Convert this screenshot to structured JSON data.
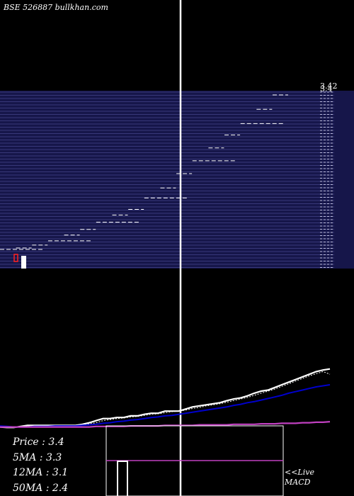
{
  "header": {
    "symbol": "BSE 526887",
    "site": "bullkhan.com"
  },
  "stats": [
    {
      "label": "Price",
      "value": "3.4"
    },
    {
      "label": "5MA",
      "value": "3.3"
    },
    {
      "label": "12MA",
      "value": "3.1"
    },
    {
      "label": "50MA",
      "value": "2.4"
    }
  ],
  "macd_label": {
    "line1": "<<Live",
    "line2": "MACD"
  },
  "colors": {
    "band": "#16164a",
    "band_line": "#5a5aa8",
    "price": "#ffffff",
    "ma_short": "#0000cc",
    "ma_long": "#c040c0",
    "volume_box": "#ffffff",
    "macd": "#c040c0"
  },
  "chart_data": {
    "type": "line",
    "price_axis_top_labels": [
      "3.42",
      "3.4"
    ],
    "price_steps": [
      2.32,
      2.33,
      2.35,
      2.38,
      2.42,
      2.46,
      2.51,
      2.56,
      2.6,
      2.68,
      2.75,
      2.85,
      2.94,
      3.03,
      3.12,
      3.2,
      3.3,
      3.4
    ],
    "series": [
      {
        "name": "Price",
        "values": [
          2.3,
          2.29,
          2.29,
          2.31,
          2.33,
          2.33,
          2.33,
          2.33,
          2.33,
          2.33,
          2.33,
          2.33,
          2.35,
          2.38,
          2.42,
          2.46,
          2.46,
          2.48,
          2.48,
          2.51,
          2.51,
          2.54,
          2.56,
          2.56,
          2.6,
          2.6,
          2.6,
          2.64,
          2.68,
          2.7,
          2.72,
          2.74,
          2.76,
          2.8,
          2.83,
          2.85,
          2.89,
          2.94,
          2.98,
          3.0,
          3.05,
          3.1,
          3.15,
          3.2,
          3.25,
          3.3,
          3.35,
          3.38,
          3.4
        ]
      },
      {
        "name": "5MA",
        "values": [
          2.31,
          2.3,
          2.3,
          2.3,
          2.31,
          2.32,
          2.32,
          2.33,
          2.33,
          2.33,
          2.33,
          2.33,
          2.34,
          2.36,
          2.38,
          2.42,
          2.44,
          2.46,
          2.47,
          2.49,
          2.5,
          2.52,
          2.54,
          2.55,
          2.57,
          2.59,
          2.6,
          2.62,
          2.65,
          2.67,
          2.7,
          2.72,
          2.74,
          2.77,
          2.8,
          2.83,
          2.86,
          2.9,
          2.94,
          2.98,
          3.02,
          3.07,
          3.12,
          3.17,
          3.22,
          3.27,
          3.31,
          3.35,
          3.3
        ]
      },
      {
        "name": "12MA",
        "values": [
          2.32,
          2.31,
          2.3,
          2.3,
          2.3,
          2.31,
          2.31,
          2.31,
          2.32,
          2.32,
          2.32,
          2.32,
          2.33,
          2.34,
          2.35,
          2.37,
          2.38,
          2.4,
          2.41,
          2.43,
          2.44,
          2.46,
          2.48,
          2.49,
          2.51,
          2.52,
          2.54,
          2.56,
          2.58,
          2.6,
          2.62,
          2.64,
          2.66,
          2.68,
          2.71,
          2.73,
          2.76,
          2.78,
          2.81,
          2.84,
          2.87,
          2.9,
          2.94,
          2.97,
          3.0,
          3.03,
          3.06,
          3.08,
          3.1
        ]
      },
      {
        "name": "50MA",
        "values": [
          2.3,
          2.3,
          2.3,
          2.3,
          2.3,
          2.3,
          2.3,
          2.3,
          2.3,
          2.3,
          2.3,
          2.3,
          2.3,
          2.3,
          2.31,
          2.31,
          2.31,
          2.31,
          2.31,
          2.32,
          2.32,
          2.32,
          2.32,
          2.32,
          2.33,
          2.33,
          2.33,
          2.33,
          2.33,
          2.34,
          2.34,
          2.34,
          2.34,
          2.34,
          2.35,
          2.35,
          2.35,
          2.35,
          2.36,
          2.36,
          2.36,
          2.37,
          2.37,
          2.37,
          2.38,
          2.38,
          2.39,
          2.39,
          2.4
        ]
      }
    ]
  }
}
